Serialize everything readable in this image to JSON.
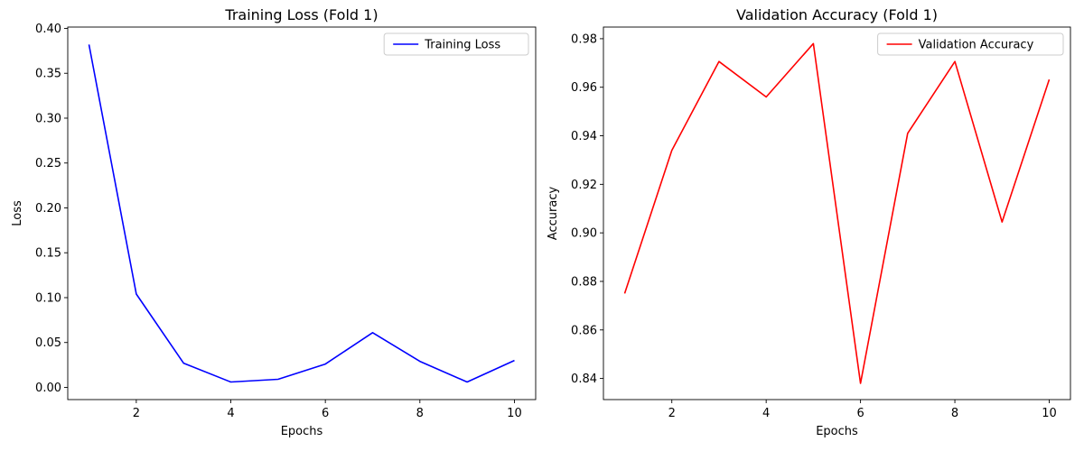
{
  "chart_data": [
    {
      "type": "line",
      "title": "Training Loss (Fold 1)",
      "xlabel": "Epochs",
      "ylabel": "Loss",
      "xlim": [
        0.55,
        10.45
      ],
      "ylim": [
        -0.0136,
        0.4015
      ],
      "xticks": [
        2,
        4,
        6,
        8,
        10
      ],
      "yticks": [
        0.0,
        0.05,
        0.1,
        0.15,
        0.2,
        0.25,
        0.3,
        0.35,
        0.4
      ],
      "ytick_labels": [
        "0.00",
        "0.05",
        "0.10",
        "0.15",
        "0.20",
        "0.25",
        "0.30",
        "0.35",
        "0.40"
      ],
      "legend_position": "upper right",
      "grid": false,
      "series": [
        {
          "name": "Training Loss",
          "color": "#0000ff",
          "x": [
            1,
            2,
            3,
            4,
            5,
            6,
            7,
            8,
            9,
            10
          ],
          "y": [
            0.382,
            0.104,
            0.027,
            0.006,
            0.009,
            0.026,
            0.061,
            0.029,
            0.006,
            0.03
          ]
        }
      ]
    },
    {
      "type": "line",
      "title": "Validation Accuracy (Fold 1)",
      "xlabel": "Epochs",
      "ylabel": "Accuracy",
      "xlim": [
        0.55,
        10.45
      ],
      "ylim": [
        0.8313,
        0.9848
      ],
      "xticks": [
        2,
        4,
        6,
        8,
        10
      ],
      "yticks": [
        0.84,
        0.86,
        0.88,
        0.9,
        0.92,
        0.94,
        0.96,
        0.98
      ],
      "ytick_labels": [
        "0.84",
        "0.86",
        "0.88",
        "0.90",
        "0.92",
        "0.94",
        "0.96",
        "0.98"
      ],
      "legend_position": "upper right",
      "grid": false,
      "series": [
        {
          "name": "Validation Accuracy",
          "color": "#ff0000",
          "x": [
            1,
            2,
            3,
            4,
            5,
            6,
            7,
            8,
            9,
            10
          ],
          "y": [
            0.875,
            0.934,
            0.9706,
            0.956,
            0.978,
            0.838,
            0.941,
            0.9706,
            0.9045,
            0.9632
          ]
        }
      ]
    }
  ]
}
